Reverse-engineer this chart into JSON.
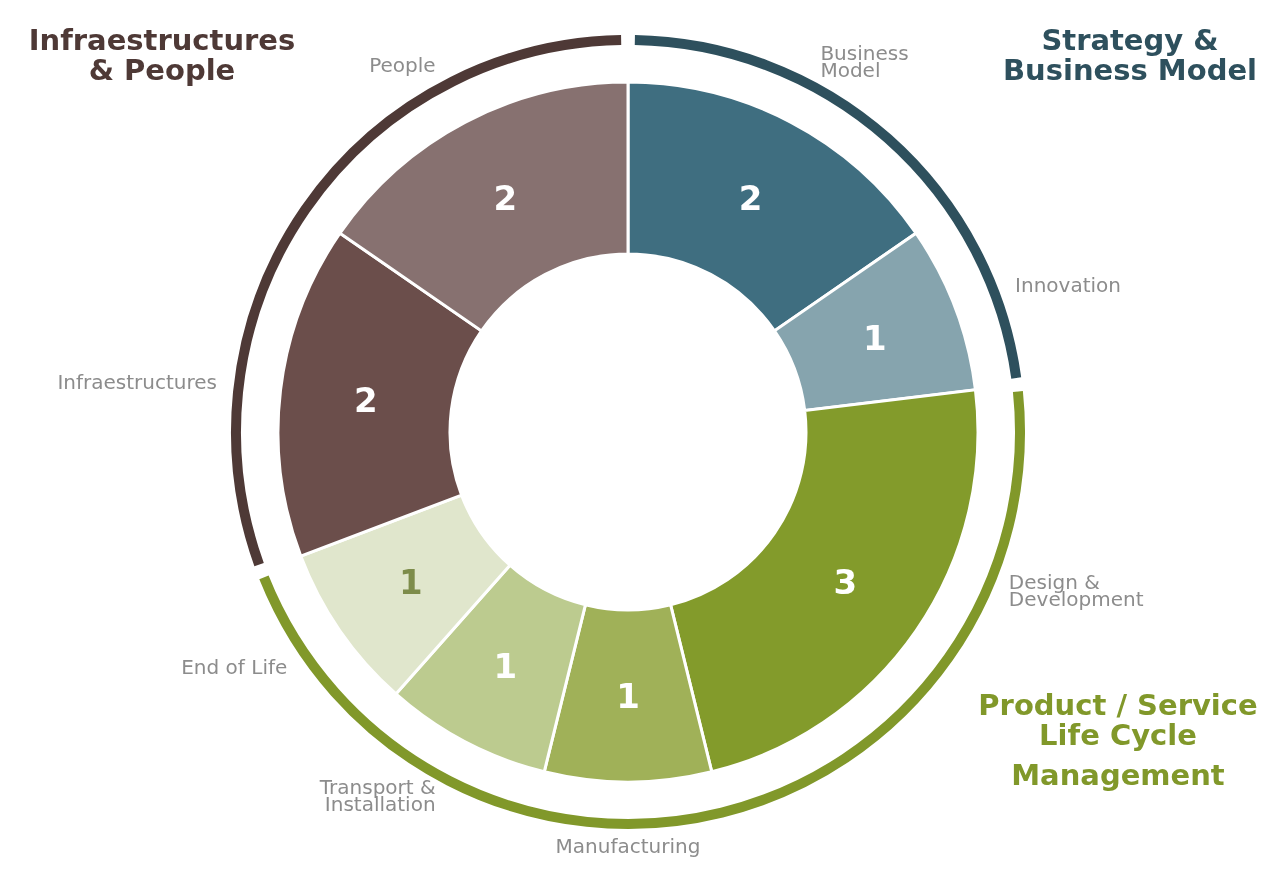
{
  "chart_data": {
    "type": "donut",
    "categories": [
      "Business Model",
      "Innovation",
      "Design & Development",
      "Manufacturing",
      "Transport & Installation",
      "End of Life",
      "Infraestructures",
      "People"
    ],
    "values": [
      2,
      1,
      3,
      1,
      1,
      1,
      2,
      2
    ],
    "colors": [
      "#3f6e80",
      "#86a4ae",
      "#839b2b",
      "#a0b158",
      "#bccb8f",
      "#e0e6cc",
      "#6b4e4b",
      "#877170"
    ],
    "data_labels": true,
    "annotations": [
      {
        "text": "Strategy & Business Model",
        "x": "Business Model"
      },
      {
        "text": "Product / Service Life Cycle Management",
        "x": "Design & Development"
      },
      {
        "text": "Infraestructures & People",
        "x": "Infraestructures"
      }
    ]
  }
}
